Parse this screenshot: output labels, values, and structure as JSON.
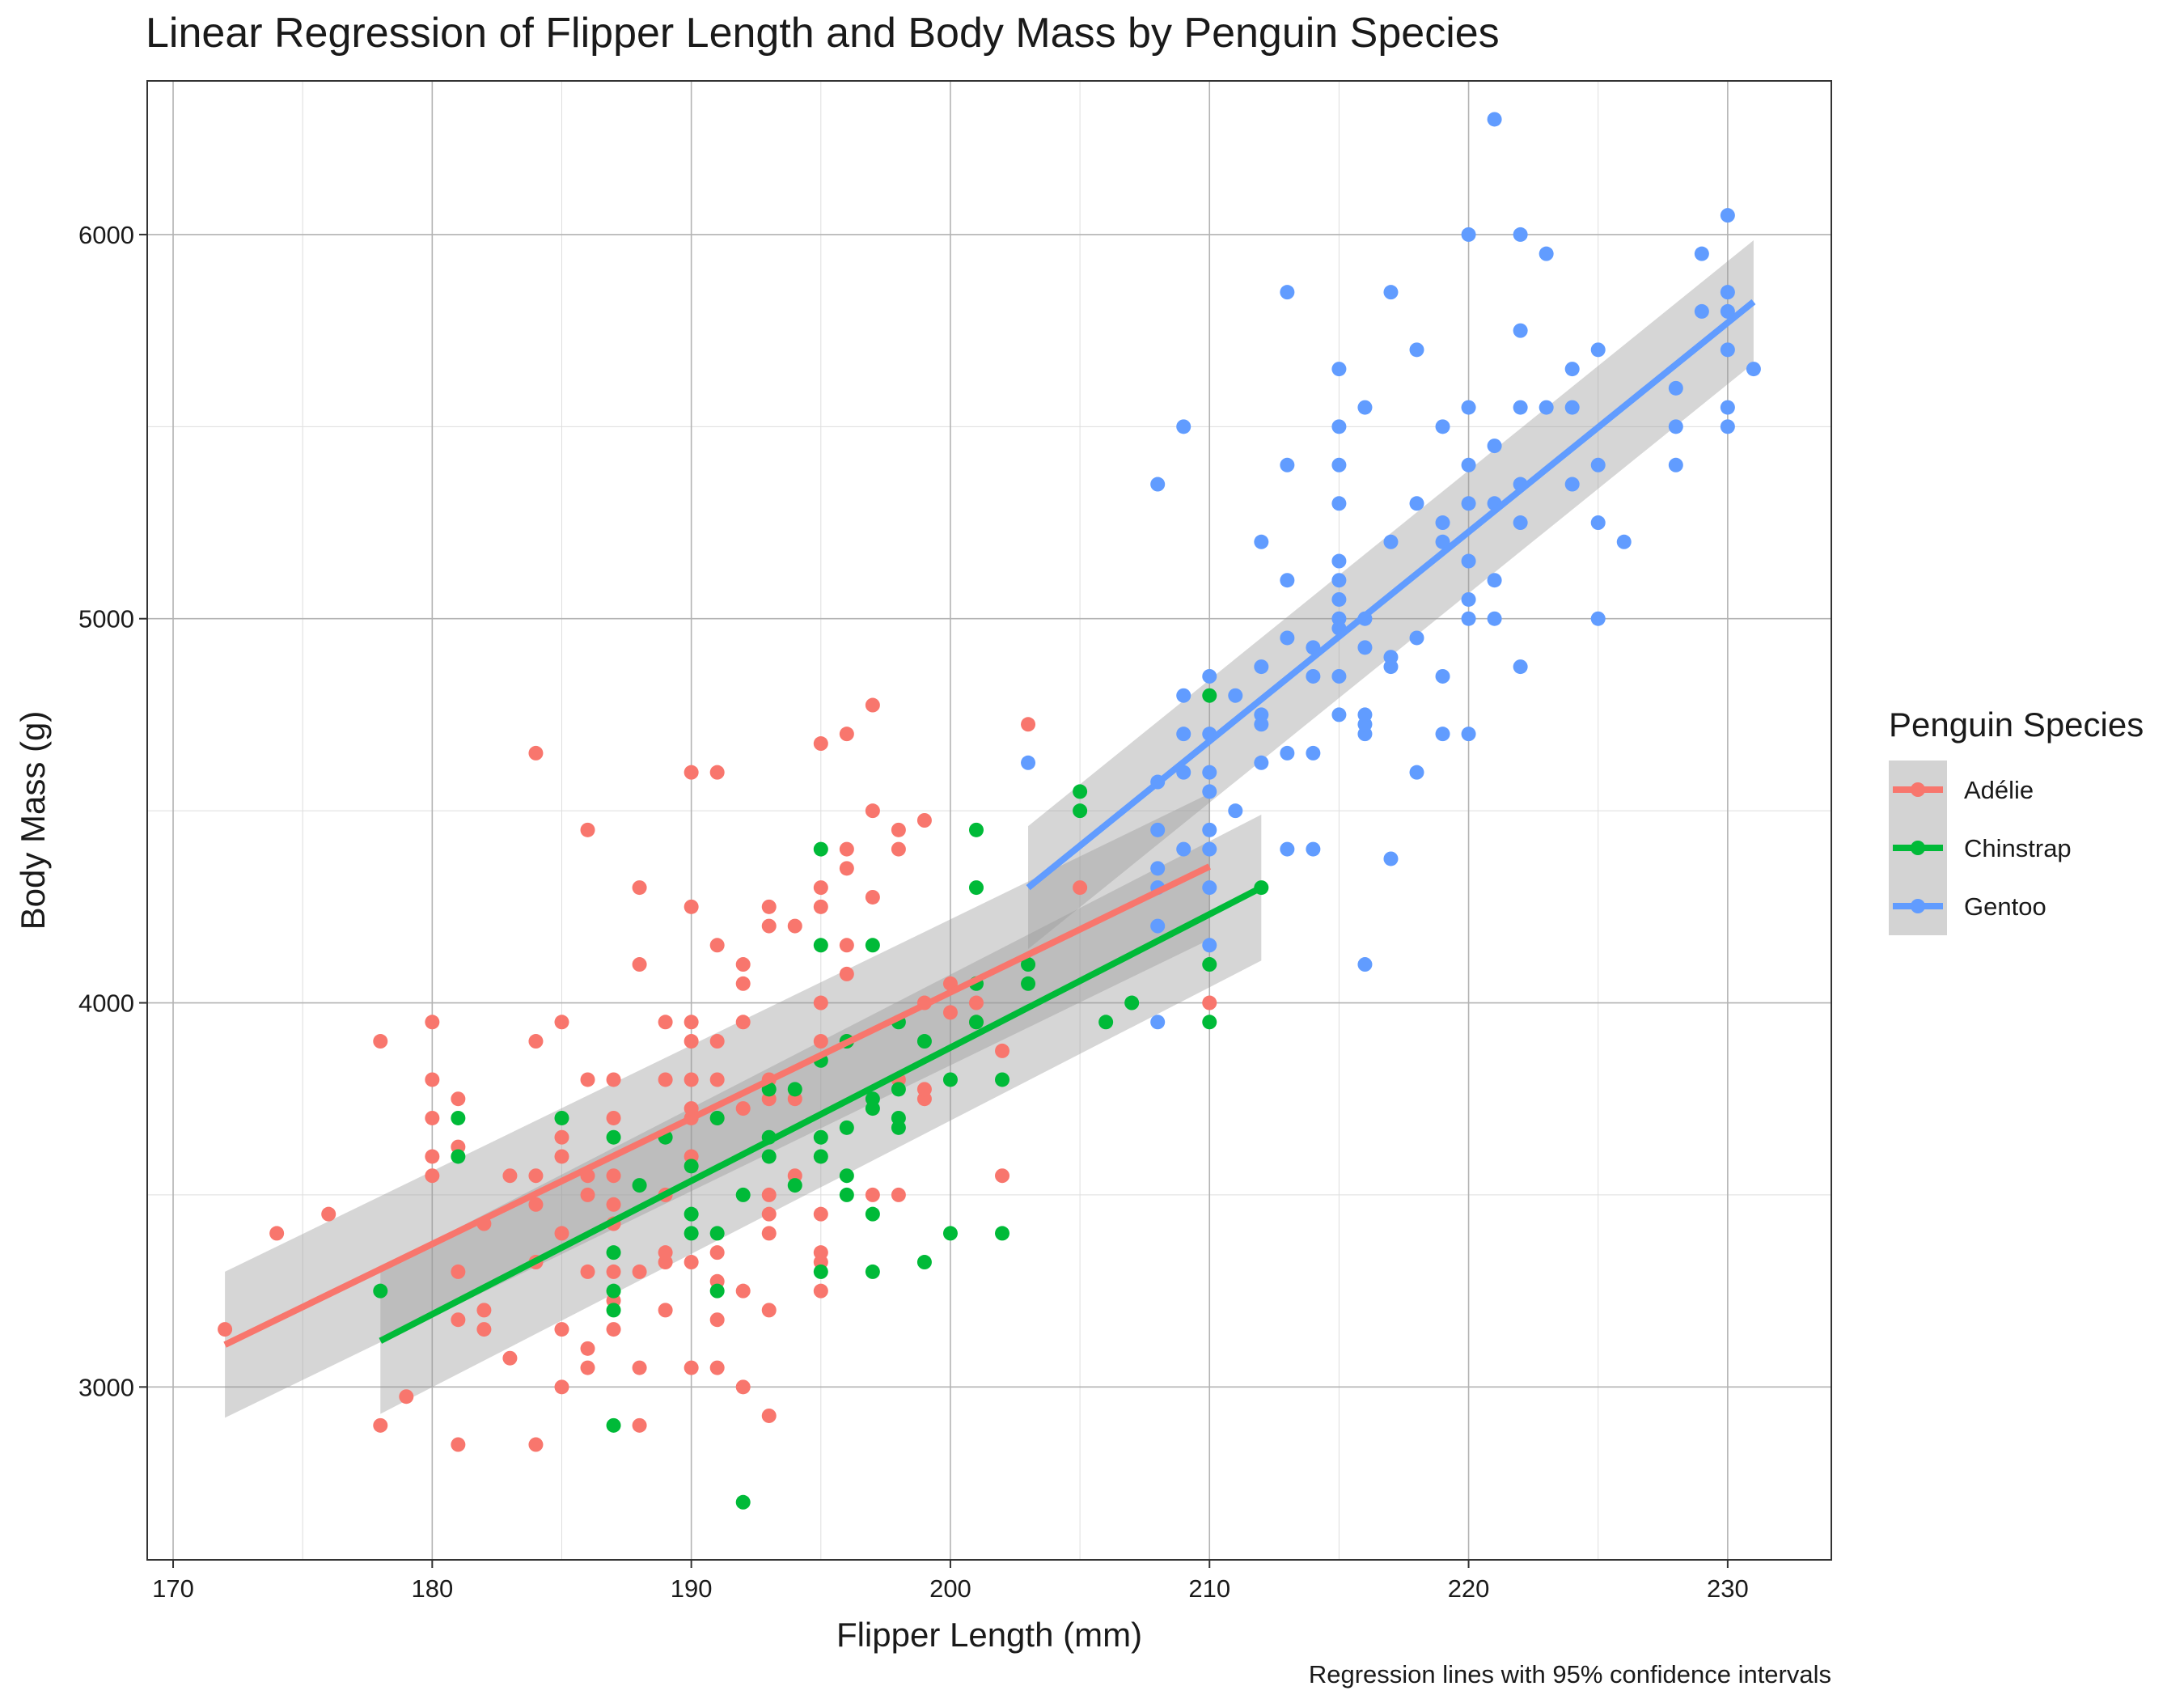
{
  "chart_data": {
    "type": "scatter",
    "title": "Linear Regression of Flipper Length and Body Mass by Penguin Species",
    "caption": "Regression lines with 95% confidence intervals",
    "xlabel": "Flipper Length (mm)",
    "ylabel": "Body Mass (g)",
    "xlim": [
      169,
      234
    ],
    "ylim": [
      2550,
      6400
    ],
    "x_ticks": [
      "170",
      "180",
      "190",
      "200",
      "210",
      "220",
      "230"
    ],
    "y_ticks": [
      "3000",
      "4000",
      "5000",
      "6000"
    ],
    "grid": true,
    "legend": {
      "title": "Penguin Species",
      "position": "right"
    },
    "series": [
      {
        "name": "Adélie",
        "color": "#F8766D",
        "points": [
          [
            172,
            3150
          ],
          [
            174,
            3400
          ],
          [
            176,
            3450
          ],
          [
            178,
            2900
          ],
          [
            178,
            3900
          ],
          [
            179,
            2975
          ],
          [
            180,
            3550
          ],
          [
            180,
            3600
          ],
          [
            180,
            3700
          ],
          [
            180,
            3800
          ],
          [
            180,
            3950
          ],
          [
            181,
            2850
          ],
          [
            181,
            3175
          ],
          [
            181,
            3300
          ],
          [
            181,
            3625
          ],
          [
            181,
            3750
          ],
          [
            182,
            3150
          ],
          [
            182,
            3200
          ],
          [
            182,
            3425
          ],
          [
            183,
            3075
          ],
          [
            183,
            3550
          ],
          [
            184,
            2850
          ],
          [
            184,
            3325
          ],
          [
            184,
            3475
          ],
          [
            184,
            3550
          ],
          [
            184,
            3900
          ],
          [
            184,
            4650
          ],
          [
            185,
            3000
          ],
          [
            185,
            3150
          ],
          [
            185,
            3400
          ],
          [
            185,
            3600
          ],
          [
            185,
            3650
          ],
          [
            185,
            3950
          ],
          [
            186,
            3050
          ],
          [
            186,
            3100
          ],
          [
            186,
            3300
          ],
          [
            186,
            3500
          ],
          [
            186,
            3550
          ],
          [
            186,
            3800
          ],
          [
            186,
            4450
          ],
          [
            187,
            3150
          ],
          [
            187,
            3225
          ],
          [
            187,
            3300
          ],
          [
            187,
            3425
          ],
          [
            187,
            3475
          ],
          [
            187,
            3550
          ],
          [
            187,
            3700
          ],
          [
            187,
            3800
          ],
          [
            188,
            2900
          ],
          [
            188,
            3050
          ],
          [
            188,
            3300
          ],
          [
            188,
            4100
          ],
          [
            188,
            4300
          ],
          [
            189,
            3200
          ],
          [
            189,
            3325
          ],
          [
            189,
            3350
          ],
          [
            189,
            3500
          ],
          [
            189,
            3800
          ],
          [
            189,
            3950
          ],
          [
            190,
            3050
          ],
          [
            190,
            3325
          ],
          [
            190,
            3600
          ],
          [
            190,
            3700
          ],
          [
            190,
            3725
          ],
          [
            190,
            3800
          ],
          [
            190,
            3900
          ],
          [
            190,
            3950
          ],
          [
            190,
            4250
          ],
          [
            190,
            4600
          ],
          [
            191,
            3050
          ],
          [
            191,
            3175
          ],
          [
            191,
            3275
          ],
          [
            191,
            3350
          ],
          [
            191,
            3700
          ],
          [
            191,
            3800
          ],
          [
            191,
            3900
          ],
          [
            191,
            4150
          ],
          [
            191,
            4600
          ],
          [
            192,
            3000
          ],
          [
            192,
            3250
          ],
          [
            192,
            3725
          ],
          [
            192,
            3950
          ],
          [
            192,
            4050
          ],
          [
            192,
            4100
          ],
          [
            193,
            2925
          ],
          [
            193,
            3200
          ],
          [
            193,
            3400
          ],
          [
            193,
            3450
          ],
          [
            193,
            3500
          ],
          [
            193,
            3750
          ],
          [
            193,
            3800
          ],
          [
            193,
            4200
          ],
          [
            193,
            4250
          ],
          [
            194,
            3550
          ],
          [
            194,
            3750
          ],
          [
            194,
            4200
          ],
          [
            195,
            3250
          ],
          [
            195,
            3325
          ],
          [
            195,
            3350
          ],
          [
            195,
            3450
          ],
          [
            195,
            3900
          ],
          [
            195,
            4000
          ],
          [
            195,
            4250
          ],
          [
            195,
            4300
          ],
          [
            195,
            4675
          ],
          [
            196,
            3900
          ],
          [
            196,
            4075
          ],
          [
            196,
            4150
          ],
          [
            196,
            4350
          ],
          [
            196,
            4400
          ],
          [
            196,
            4700
          ],
          [
            197,
            3500
          ],
          [
            197,
            4275
          ],
          [
            197,
            4500
          ],
          [
            197,
            4775
          ],
          [
            198,
            3500
          ],
          [
            198,
            3800
          ],
          [
            198,
            4400
          ],
          [
            198,
            4450
          ],
          [
            199,
            3750
          ],
          [
            199,
            3775
          ],
          [
            199,
            4000
          ],
          [
            199,
            4475
          ],
          [
            200,
            3975
          ],
          [
            200,
            4050
          ],
          [
            201,
            3950
          ],
          [
            201,
            4000
          ],
          [
            202,
            3550
          ],
          [
            202,
            3875
          ],
          [
            203,
            4725
          ],
          [
            205,
            4300
          ],
          [
            210,
            4000
          ]
        ],
        "fit": {
          "x": [
            172,
            210
          ],
          "y": [
            3110,
            4355
          ],
          "lo": [
            2920,
            4165
          ],
          "hi": [
            3300,
            4545
          ]
        }
      },
      {
        "name": "Chinstrap",
        "color": "#00BA38",
        "points": [
          [
            178,
            3250
          ],
          [
            181,
            3600
          ],
          [
            181,
            3700
          ],
          [
            185,
            3700
          ],
          [
            187,
            2900
          ],
          [
            187,
            3200
          ],
          [
            187,
            3250
          ],
          [
            187,
            3350
          ],
          [
            187,
            3650
          ],
          [
            188,
            3525
          ],
          [
            189,
            3650
          ],
          [
            190,
            3400
          ],
          [
            190,
            3450
          ],
          [
            190,
            3575
          ],
          [
            191,
            3250
          ],
          [
            191,
            3400
          ],
          [
            191,
            3700
          ],
          [
            192,
            2700
          ],
          [
            192,
            3500
          ],
          [
            193,
            3600
          ],
          [
            193,
            3650
          ],
          [
            193,
            3775
          ],
          [
            194,
            3525
          ],
          [
            194,
            3775
          ],
          [
            195,
            3300
          ],
          [
            195,
            3600
          ],
          [
            195,
            3650
          ],
          [
            195,
            3850
          ],
          [
            195,
            4150
          ],
          [
            195,
            4400
          ],
          [
            196,
            3500
          ],
          [
            196,
            3550
          ],
          [
            196,
            3675
          ],
          [
            196,
            3900
          ],
          [
            197,
            3300
          ],
          [
            197,
            3450
          ],
          [
            197,
            3725
          ],
          [
            197,
            3750
          ],
          [
            197,
            4150
          ],
          [
            198,
            3675
          ],
          [
            198,
            3700
          ],
          [
            198,
            3775
          ],
          [
            198,
            3950
          ],
          [
            199,
            3325
          ],
          [
            199,
            3900
          ],
          [
            200,
            3400
          ],
          [
            200,
            3800
          ],
          [
            201,
            3950
          ],
          [
            201,
            4050
          ],
          [
            201,
            4300
          ],
          [
            201,
            4450
          ],
          [
            202,
            3400
          ],
          [
            202,
            3800
          ],
          [
            203,
            4050
          ],
          [
            203,
            4100
          ],
          [
            205,
            4500
          ],
          [
            205,
            4550
          ],
          [
            206,
            3950
          ],
          [
            207,
            4000
          ],
          [
            210,
            3950
          ],
          [
            210,
            4100
          ],
          [
            210,
            4800
          ],
          [
            212,
            4300
          ]
        ],
        "fit": {
          "x": [
            178,
            212
          ],
          "y": [
            3120,
            4300
          ],
          "lo": [
            2930,
            4110
          ],
          "hi": [
            3310,
            4490
          ]
        }
      },
      {
        "name": "Gentoo",
        "color": "#619CFF",
        "points": [
          [
            203,
            4625
          ],
          [
            208,
            3950
          ],
          [
            208,
            4200
          ],
          [
            208,
            4300
          ],
          [
            208,
            4350
          ],
          [
            208,
            4450
          ],
          [
            208,
            4575
          ],
          [
            208,
            5350
          ],
          [
            209,
            4400
          ],
          [
            209,
            4600
          ],
          [
            209,
            4700
          ],
          [
            209,
            4800
          ],
          [
            209,
            5500
          ],
          [
            210,
            4150
          ],
          [
            210,
            4300
          ],
          [
            210,
            4400
          ],
          [
            210,
            4450
          ],
          [
            210,
            4550
          ],
          [
            210,
            4600
          ],
          [
            210,
            4700
          ],
          [
            210,
            4850
          ],
          [
            211,
            4500
          ],
          [
            211,
            4800
          ],
          [
            212,
            4625
          ],
          [
            212,
            4725
          ],
          [
            212,
            4750
          ],
          [
            212,
            4875
          ],
          [
            212,
            5200
          ],
          [
            213,
            4400
          ],
          [
            213,
            4650
          ],
          [
            213,
            4950
          ],
          [
            213,
            5100
          ],
          [
            213,
            5400
          ],
          [
            213,
            5850
          ],
          [
            214,
            4400
          ],
          [
            214,
            4650
          ],
          [
            214,
            4850
          ],
          [
            214,
            4925
          ],
          [
            215,
            4750
          ],
          [
            215,
            4850
          ],
          [
            215,
            4975
          ],
          [
            215,
            5000
          ],
          [
            215,
            5050
          ],
          [
            215,
            5100
          ],
          [
            215,
            5150
          ],
          [
            215,
            5300
          ],
          [
            215,
            5400
          ],
          [
            215,
            5500
          ],
          [
            215,
            5650
          ],
          [
            216,
            4100
          ],
          [
            216,
            4700
          ],
          [
            216,
            4725
          ],
          [
            216,
            4750
          ],
          [
            216,
            4925
          ],
          [
            216,
            5000
          ],
          [
            216,
            5550
          ],
          [
            217,
            4375
          ],
          [
            217,
            4875
          ],
          [
            217,
            4900
          ],
          [
            217,
            5200
          ],
          [
            217,
            5850
          ],
          [
            218,
            4600
          ],
          [
            218,
            4950
          ],
          [
            218,
            5300
          ],
          [
            218,
            5700
          ],
          [
            219,
            4700
          ],
          [
            219,
            4850
          ],
          [
            219,
            5200
          ],
          [
            219,
            5250
          ],
          [
            219,
            5500
          ],
          [
            220,
            4700
          ],
          [
            220,
            5000
          ],
          [
            220,
            5050
          ],
          [
            220,
            5150
          ],
          [
            220,
            5300
          ],
          [
            220,
            5400
          ],
          [
            220,
            5550
          ],
          [
            220,
            6000
          ],
          [
            221,
            5000
          ],
          [
            221,
            5100
          ],
          [
            221,
            5300
          ],
          [
            221,
            5450
          ],
          [
            221,
            6300
          ],
          [
            222,
            4875
          ],
          [
            222,
            5250
          ],
          [
            222,
            5350
          ],
          [
            222,
            5550
          ],
          [
            222,
            5750
          ],
          [
            222,
            6000
          ],
          [
            223,
            5550
          ],
          [
            223,
            5950
          ],
          [
            224,
            5350
          ],
          [
            224,
            5550
          ],
          [
            224,
            5650
          ],
          [
            225,
            5000
          ],
          [
            225,
            5250
          ],
          [
            225,
            5400
          ],
          [
            225,
            5700
          ],
          [
            226,
            5200
          ],
          [
            228,
            5400
          ],
          [
            228,
            5500
          ],
          [
            228,
            5600
          ],
          [
            229,
            5800
          ],
          [
            229,
            5950
          ],
          [
            230,
            5500
          ],
          [
            230,
            5550
          ],
          [
            230,
            5700
          ],
          [
            230,
            5800
          ],
          [
            230,
            5850
          ],
          [
            230,
            6050
          ],
          [
            231,
            5650
          ]
        ],
        "fit": {
          "x": [
            203,
            231
          ],
          "y": [
            4300,
            5825
          ],
          "lo": [
            4140,
            5665
          ],
          "hi": [
            4460,
            5985
          ]
        }
      }
    ]
  }
}
